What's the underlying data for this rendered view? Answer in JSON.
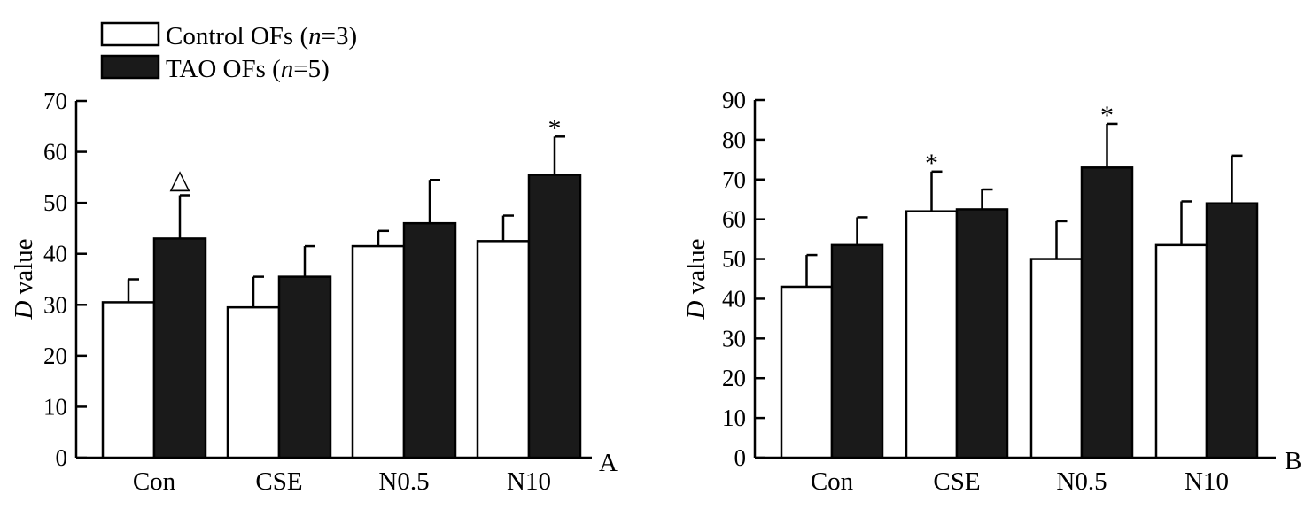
{
  "legend": {
    "series0_label": "Control OFs (",
    "series0_n": "n",
    "series0_count": "=3)",
    "series1_label": "TAO OFs (",
    "series1_n": "n",
    "series1_count": "=5)"
  },
  "colors": {
    "control_fill": "#ffffff",
    "tao_fill": "#1a1a1a",
    "stroke": "#000000"
  },
  "chart_data": [
    {
      "type": "bar",
      "panel": "A",
      "title": "",
      "xlabel": "",
      "ylabel_italic": "D",
      "ylabel_rest": " value",
      "ylim": [
        0,
        70
      ],
      "yticks": [
        0,
        10,
        20,
        30,
        40,
        50,
        60,
        70
      ],
      "categories": [
        "Con",
        "CSE",
        "N0.5",
        "N10"
      ],
      "series": [
        {
          "name": "Control OFs (n=3)",
          "values": [
            30.5,
            29.5,
            41.5,
            42.5
          ],
          "errors": [
            4.5,
            6,
            3,
            5
          ]
        },
        {
          "name": "TAO OFs (n=5)",
          "values": [
            43,
            35.5,
            46,
            55.5
          ],
          "errors": [
            8.5,
            6,
            8.5,
            7.5
          ]
        }
      ],
      "annotations": [
        {
          "series": 1,
          "category": 0,
          "text": "△"
        },
        {
          "series": 1,
          "category": 3,
          "text": "*"
        }
      ]
    },
    {
      "type": "bar",
      "panel": "B",
      "title": "",
      "xlabel": "",
      "ylabel_italic": "D",
      "ylabel_rest": " value",
      "ylim": [
        0,
        90
      ],
      "yticks": [
        0,
        10,
        20,
        30,
        40,
        50,
        60,
        70,
        80,
        90
      ],
      "categories": [
        "Con",
        "CSE",
        "N0.5",
        "N10"
      ],
      "series": [
        {
          "name": "Control OFs (n=3)",
          "values": [
            43,
            62,
            50,
            53.5
          ],
          "errors": [
            8,
            10,
            9.5,
            11
          ]
        },
        {
          "name": "TAO OFs (n=5)",
          "values": [
            53.5,
            62.5,
            73,
            64
          ],
          "errors": [
            7,
            5,
            11,
            12
          ]
        }
      ],
      "annotations": [
        {
          "series": 0,
          "category": 1,
          "text": "*"
        },
        {
          "series": 1,
          "category": 2,
          "text": "*"
        }
      ]
    }
  ]
}
